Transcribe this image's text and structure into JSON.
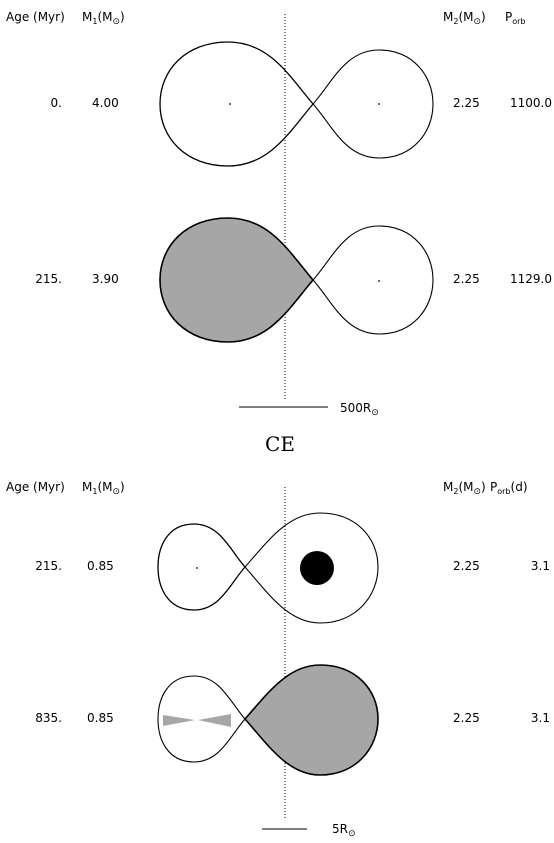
{
  "headers": {
    "age": "Age (Myr)",
    "m1": "M",
    "m1_sub": "1",
    "m2": "M",
    "m2_sub": "2",
    "porb": "P",
    "porb_sub": "orb",
    "porb_unit": "(d)",
    "msun": "(M",
    "sun_symbol": "⊙",
    "close_paren": ")"
  },
  "top_panel": {
    "rows": [
      {
        "age": "0.",
        "m1": "4.00",
        "m2": "2.25",
        "porb": "1100.0"
      },
      {
        "age": "215.",
        "m1": "3.90",
        "m2": "2.25",
        "porb": "1129.0"
      }
    ],
    "scale_label": "500R"
  },
  "ce_label": "CE",
  "bottom_panel": {
    "rows": [
      {
        "age": "215.",
        "m1": "0.85",
        "m2": "2.25",
        "porb": "3.1"
      },
      {
        "age": "835.",
        "m1": "0.85",
        "m2": "2.25",
        "porb": "3.1"
      }
    ],
    "scale_label": "5R"
  },
  "colors": {
    "fill_grey": "#a6a6a6",
    "compact_star": "#000000"
  }
}
